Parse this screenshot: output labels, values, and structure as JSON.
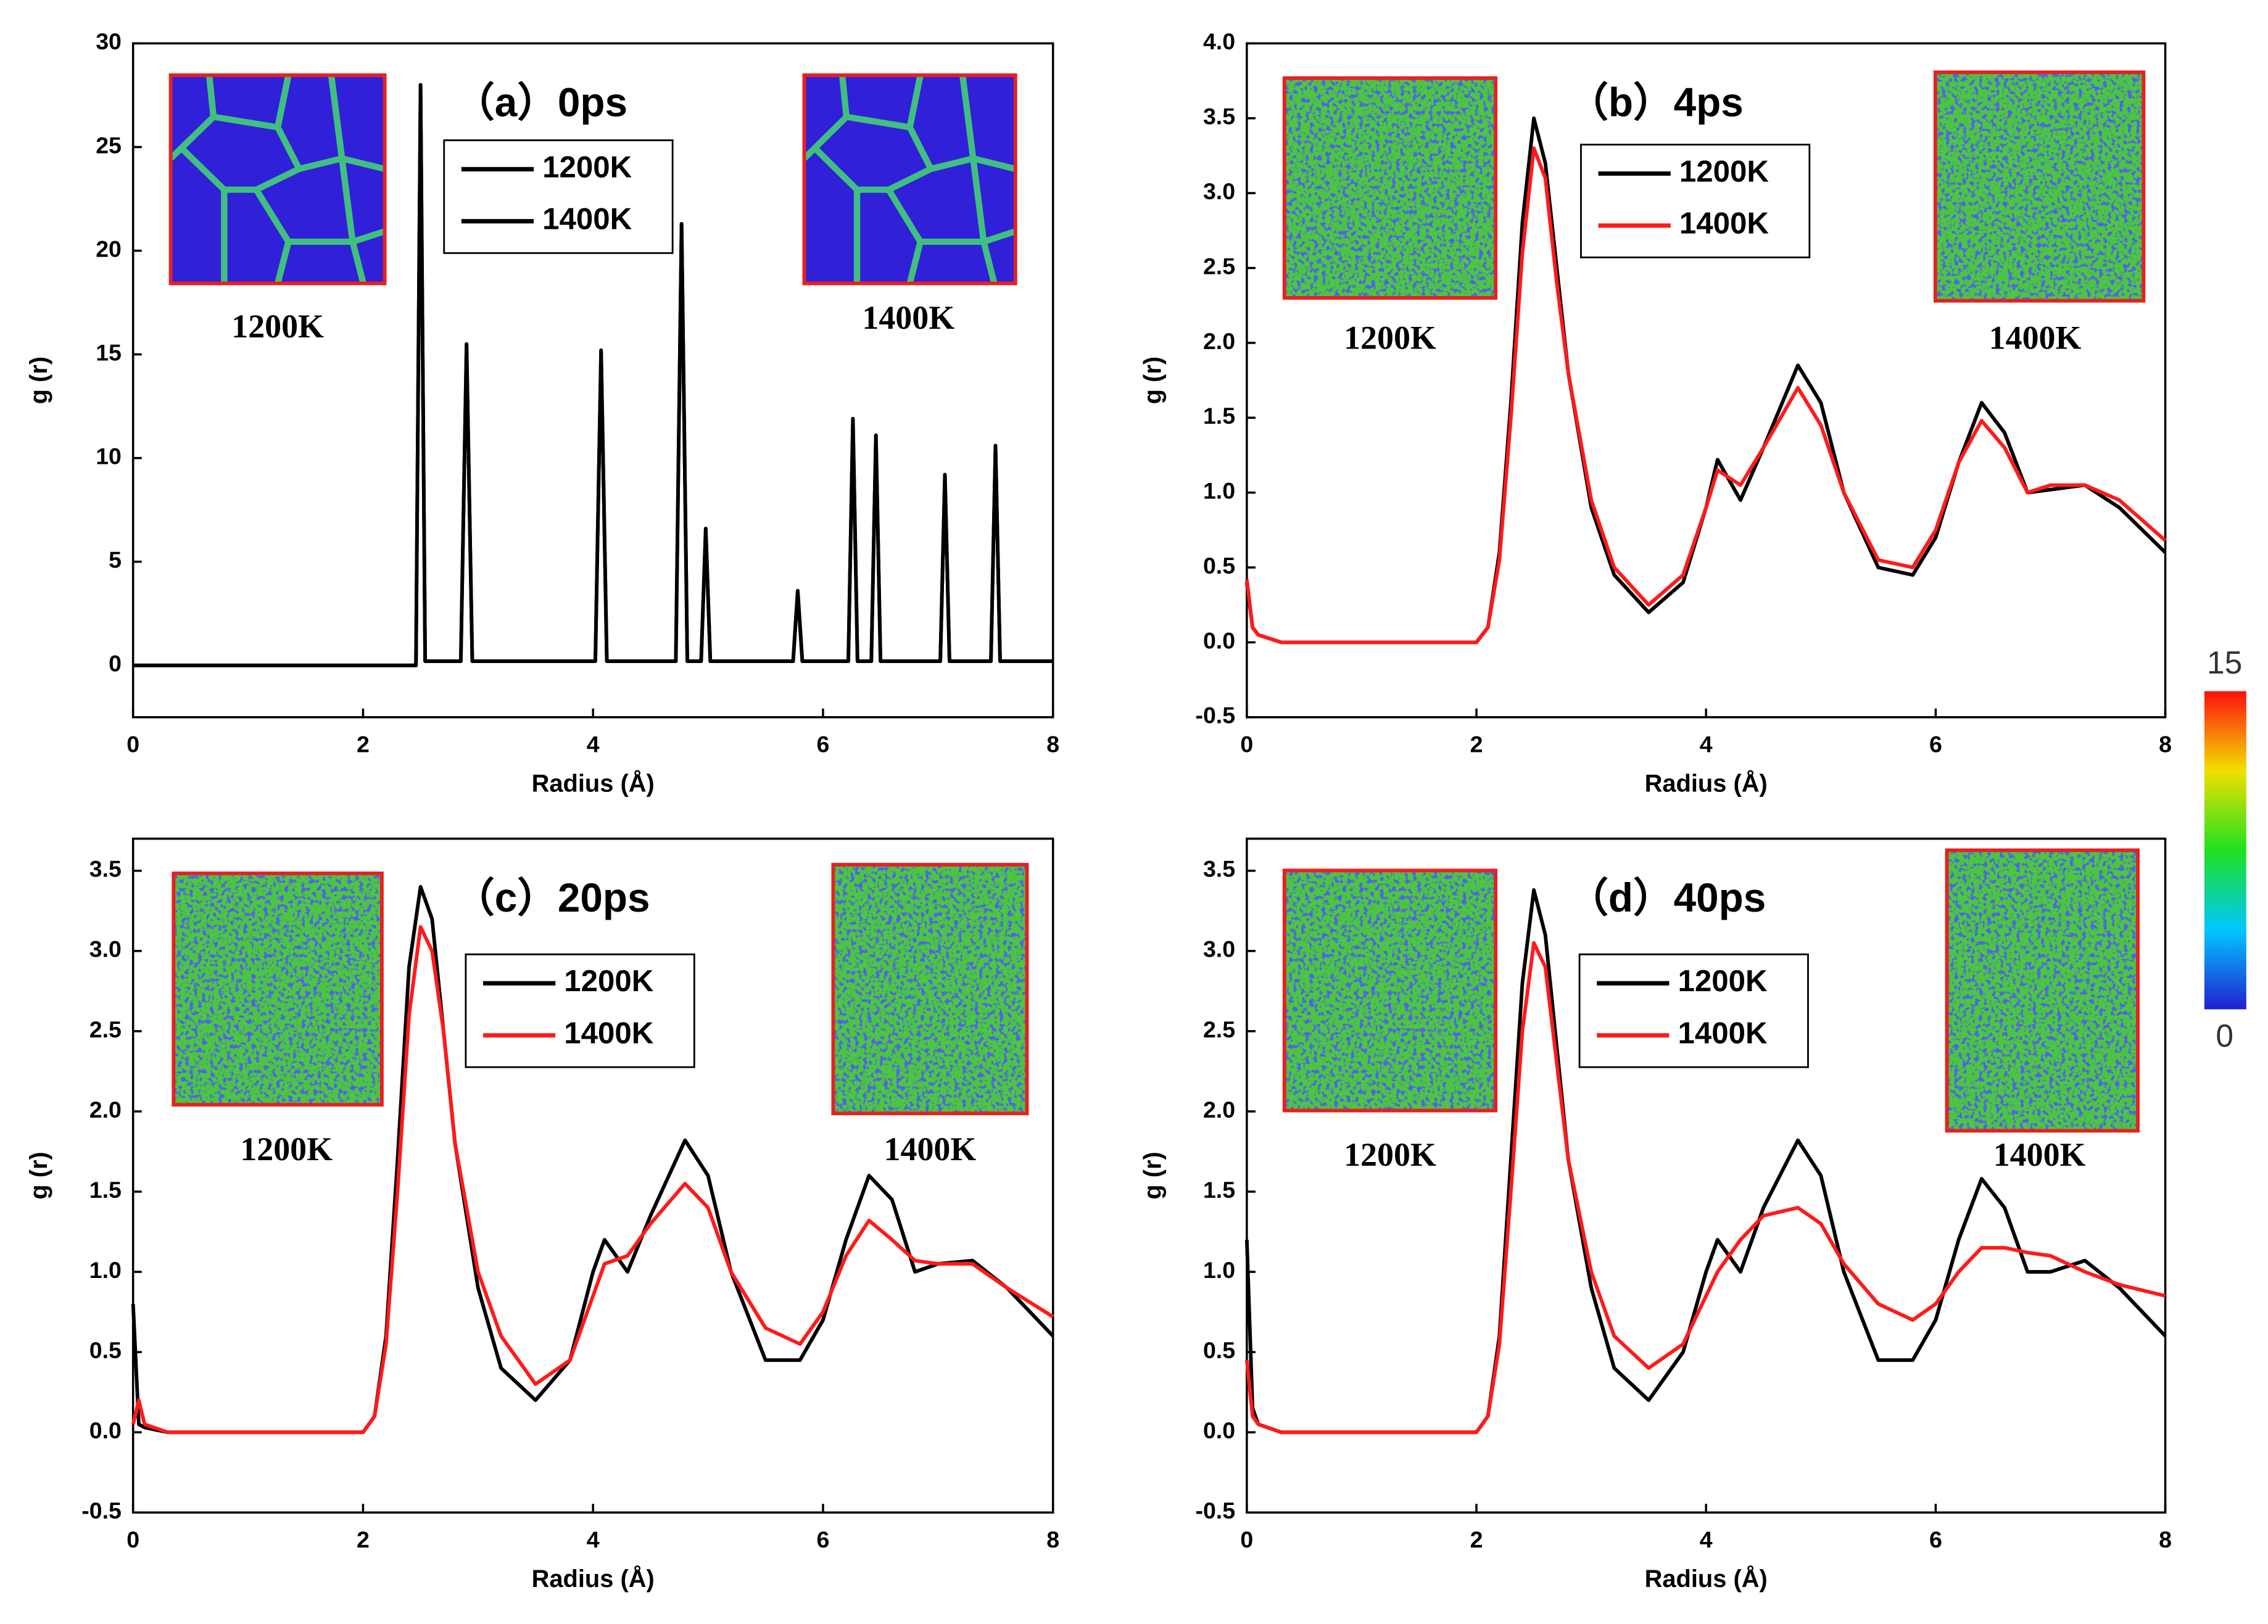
{
  "chart_data": [
    {
      "type": "line",
      "title": "（a）0ps",
      "xlabel": "Radius (Å)",
      "ylabel": "g (r)",
      "xlim": [
        0,
        8
      ],
      "xticks": [
        0,
        2,
        4,
        6,
        8
      ],
      "ylim": [
        -2.5,
        30
      ],
      "yticks": [
        0,
        5,
        10,
        15,
        20,
        25,
        30
      ],
      "annotations": [
        "1200K",
        "1400K"
      ],
      "x": [
        0,
        2.0,
        2.46,
        2.5,
        2.54,
        2.85,
        2.9,
        2.95,
        4.02,
        4.07,
        4.12,
        4.72,
        4.77,
        4.82,
        4.94,
        4.98,
        5.02,
        5.74,
        5.78,
        5.82,
        6.22,
        6.26,
        6.3,
        6.42,
        6.46,
        6.5,
        7.02,
        7.06,
        7.1,
        7.46,
        7.5,
        7.54,
        8
      ],
      "series": [
        {
          "name": "1200K",
          "color": "#000000",
          "values": [
            0,
            0,
            0,
            28,
            0.2,
            0.2,
            15.5,
            0.2,
            0.2,
            15.2,
            0.2,
            0.2,
            21.3,
            0.2,
            0.2,
            6.6,
            0.2,
            0.2,
            3.6,
            0.2,
            0.2,
            11.9,
            0.2,
            0.2,
            11.1,
            0.2,
            0.2,
            9.2,
            0.2,
            0.2,
            10.6,
            0.2,
            0.2
          ]
        },
        {
          "name": "1400K",
          "color": "#000000",
          "values": [
            0,
            0,
            0,
            28,
            0.2,
            0.2,
            15.5,
            0.2,
            0.2,
            15.2,
            0.2,
            0.2,
            21.3,
            0.2,
            0.2,
            6.6,
            0.2,
            0.2,
            3.6,
            0.2,
            0.2,
            11.9,
            0.2,
            0.2,
            11.1,
            0.2,
            0.2,
            9.2,
            0.2,
            0.2,
            10.6,
            0.2,
            0.2
          ]
        }
      ]
    },
    {
      "type": "line",
      "title": "（b）4ps",
      "xlabel": "Radius (Å)",
      "ylabel": "g (r)",
      "xlim": [
        0,
        8
      ],
      "xticks": [
        0,
        2,
        4,
        6,
        8
      ],
      "ylim": [
        -0.5,
        4.0
      ],
      "yticks": [
        -0.5,
        {
          "value": 0,
          "label": "0.0"
        },
        0.5,
        {
          "value": 1,
          "label": "1.0"
        },
        1.5,
        {
          "value": 2,
          "label": "2.0"
        },
        2.5,
        {
          "value": 3,
          "label": "3.0"
        },
        3.5,
        {
          "value": 4,
          "label": "4.0"
        }
      ],
      "annotations": [
        "1200K",
        "1400K"
      ],
      "x": [
        0,
        0.05,
        0.1,
        0.3,
        1,
        2,
        2.1,
        2.2,
        2.3,
        2.4,
        2.5,
        2.6,
        2.7,
        2.8,
        3,
        3.2,
        3.5,
        3.8,
        4,
        4.1,
        4.3,
        4.5,
        4.8,
        5,
        5.2,
        5.5,
        5.8,
        6,
        6.2,
        6.4,
        6.6,
        6.8,
        7,
        7.3,
        7.6,
        8
      ],
      "series": [
        {
          "name": "1200K",
          "color": "#000000",
          "values": [
            0.4,
            0.1,
            0.05,
            0,
            0,
            0,
            0.1,
            0.6,
            1.6,
            2.8,
            3.5,
            3.2,
            2.5,
            1.8,
            0.9,
            0.45,
            0.2,
            0.4,
            0.9,
            1.22,
            0.95,
            1.3,
            1.85,
            1.6,
            1.0,
            0.5,
            0.45,
            0.7,
            1.2,
            1.6,
            1.4,
            1.0,
            1.02,
            1.05,
            0.9,
            0.6
          ]
        },
        {
          "name": "1400K",
          "color": "#ff1a1a",
          "values": [
            0.42,
            0.1,
            0.05,
            0,
            0,
            0,
            0.1,
            0.55,
            1.5,
            2.6,
            3.3,
            3.1,
            2.4,
            1.8,
            0.95,
            0.5,
            0.25,
            0.45,
            0.9,
            1.15,
            1.05,
            1.3,
            1.7,
            1.45,
            1.0,
            0.55,
            0.5,
            0.75,
            1.2,
            1.48,
            1.3,
            1.0,
            1.05,
            1.05,
            0.95,
            0.68
          ]
        }
      ]
    },
    {
      "type": "line",
      "title": "（c）20ps",
      "xlabel": "Radius (Å)",
      "ylabel": "g (r)",
      "xlim": [
        0,
        8
      ],
      "xticks": [
        0,
        2,
        4,
        6,
        8
      ],
      "ylim": [
        -0.5,
        3.7
      ],
      "yticks": [
        -0.5,
        {
          "value": 0,
          "label": "0.0"
        },
        0.5,
        {
          "value": 1,
          "label": "1.0"
        },
        1.5,
        {
          "value": 2,
          "label": "2.0"
        },
        2.5,
        {
          "value": 3,
          "label": "3.0"
        },
        3.5
      ],
      "annotations": [
        "1200K",
        "1400K"
      ],
      "x": [
        0,
        0.05,
        0.1,
        0.3,
        1,
        2,
        2.1,
        2.2,
        2.3,
        2.4,
        2.5,
        2.6,
        2.7,
        2.8,
        3,
        3.2,
        3.5,
        3.8,
        4,
        4.1,
        4.3,
        4.5,
        4.8,
        5,
        5.2,
        5.5,
        5.8,
        6,
        6.2,
        6.4,
        6.6,
        6.8,
        7,
        7.3,
        7.6,
        8
      ],
      "series": [
        {
          "name": "1200K",
          "color": "#000000",
          "values": [
            0.8,
            0.05,
            0.03,
            0,
            0,
            0,
            0.1,
            0.6,
            1.7,
            2.9,
            3.4,
            3.2,
            2.5,
            1.8,
            0.9,
            0.4,
            0.2,
            0.45,
            1.0,
            1.2,
            1.0,
            1.35,
            1.82,
            1.6,
            1.0,
            0.45,
            0.45,
            0.7,
            1.2,
            1.6,
            1.45,
            1.0,
            1.05,
            1.07,
            0.9,
            0.6
          ]
        },
        {
          "name": "1400K",
          "color": "#ff1a1a",
          "values": [
            0.05,
            0.2,
            0.05,
            0,
            0,
            0,
            0.1,
            0.55,
            1.5,
            2.6,
            3.15,
            3.0,
            2.5,
            1.8,
            1.0,
            0.6,
            0.3,
            0.45,
            0.85,
            1.05,
            1.1,
            1.3,
            1.55,
            1.4,
            1.0,
            0.65,
            0.55,
            0.75,
            1.1,
            1.32,
            1.2,
            1.07,
            1.05,
            1.05,
            0.9,
            0.72
          ]
        }
      ]
    },
    {
      "type": "line",
      "title": "（d）40ps",
      "xlabel": "Radius (Å)",
      "ylabel": "g (r)",
      "xlim": [
        0,
        8
      ],
      "xticks": [
        0,
        2,
        4,
        6,
        8
      ],
      "ylim": [
        -0.5,
        3.7
      ],
      "yticks": [
        -0.5,
        {
          "value": 0,
          "label": "0.0"
        },
        0.5,
        {
          "value": 1,
          "label": "1.0"
        },
        1.5,
        {
          "value": 2,
          "label": "2.0"
        },
        2.5,
        {
          "value": 3,
          "label": "3.0"
        },
        3.5
      ],
      "annotations": [
        "1200K",
        "1400K"
      ],
      "x": [
        0,
        0.05,
        0.1,
        0.3,
        1,
        2,
        2.1,
        2.2,
        2.3,
        2.4,
        2.5,
        2.6,
        2.7,
        2.8,
        3,
        3.2,
        3.5,
        3.8,
        4,
        4.1,
        4.3,
        4.5,
        4.8,
        5,
        5.2,
        5.5,
        5.8,
        6,
        6.2,
        6.4,
        6.6,
        6.8,
        7,
        7.3,
        7.6,
        8
      ],
      "series": [
        {
          "name": "1200K",
          "color": "#000000",
          "values": [
            1.2,
            0.15,
            0.05,
            0,
            0,
            0,
            0.1,
            0.6,
            1.7,
            2.8,
            3.38,
            3.1,
            2.4,
            1.7,
            0.9,
            0.4,
            0.2,
            0.5,
            1.0,
            1.2,
            1.0,
            1.4,
            1.82,
            1.6,
            1.0,
            0.45,
            0.45,
            0.7,
            1.2,
            1.58,
            1.4,
            1.0,
            1.0,
            1.07,
            0.9,
            0.6
          ]
        },
        {
          "name": "1400K",
          "color": "#ff1a1a",
          "values": [
            0.45,
            0.1,
            0.05,
            0,
            0,
            0,
            0.1,
            0.55,
            1.5,
            2.5,
            3.05,
            2.9,
            2.3,
            1.7,
            1.0,
            0.6,
            0.4,
            0.55,
            0.85,
            1.0,
            1.2,
            1.35,
            1.4,
            1.3,
            1.05,
            0.8,
            0.7,
            0.8,
            1.0,
            1.15,
            1.15,
            1.12,
            1.1,
            1.0,
            0.92,
            0.85
          ]
        }
      ]
    }
  ],
  "colorbar": {
    "ticks": [
      0,
      15
    ]
  }
}
